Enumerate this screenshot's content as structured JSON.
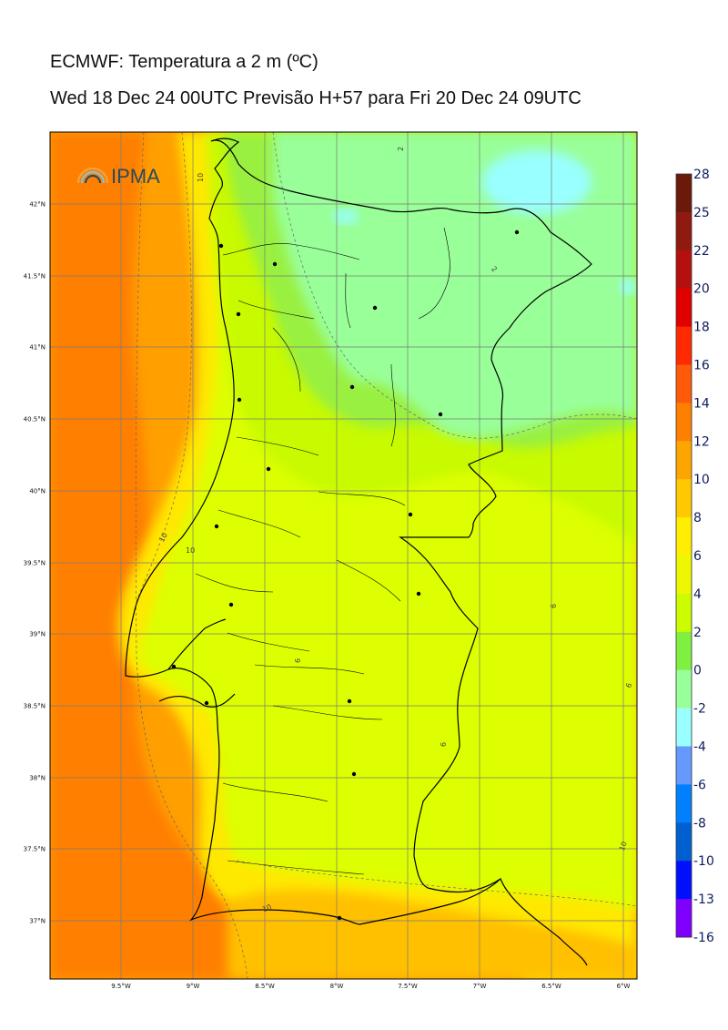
{
  "title": {
    "line1": "ECMWF: Temperatura a 2 m (ºC)",
    "line2": "Wed 18 Dec 24 00UTC Previsão H+57 para Fri 20 Dec 24 09UTC"
  },
  "logo": {
    "text": "IPMA",
    "icon": "rainbow-arc-icon"
  },
  "map": {
    "lon_ticks": [
      "9.5°W",
      "9°W",
      "8.5°W",
      "8°W",
      "7.5°W",
      "7°W",
      "6.5°W",
      "6°W"
    ],
    "lat_ticks": [
      "42°N",
      "41.5°N",
      "41°N",
      "40.5°N",
      "40°N",
      "39.5°N",
      "39°N",
      "38.5°N",
      "38°N",
      "37.5°N",
      "37°N"
    ],
    "contour_labels": [
      "10",
      "2",
      "10",
      "2",
      "10",
      "6",
      "6",
      "6",
      "6",
      "10",
      "10"
    ]
  },
  "colorbar": {
    "labels": [
      "28",
      "25",
      "22",
      "20",
      "18",
      "16",
      "14",
      "12",
      "10",
      "8",
      "6",
      "4",
      "2",
      "0",
      "-2",
      "-4",
      "-6",
      "-8",
      "-10",
      "-13",
      "-16"
    ],
    "colors": [
      "#6b1a0a",
      "#8e1a10",
      "#b51010",
      "#e00000",
      "#ff2a00",
      "#ff5a0a",
      "#ff7f00",
      "#ffa500",
      "#ffc800",
      "#ffee00",
      "#ecf700",
      "#cdfc00",
      "#80f040",
      "#99ff99",
      "#99ffff",
      "#6699ff",
      "#0080ff",
      "#0060d0",
      "#0010ff",
      "#8000ff",
      "#e000ff"
    ]
  }
}
